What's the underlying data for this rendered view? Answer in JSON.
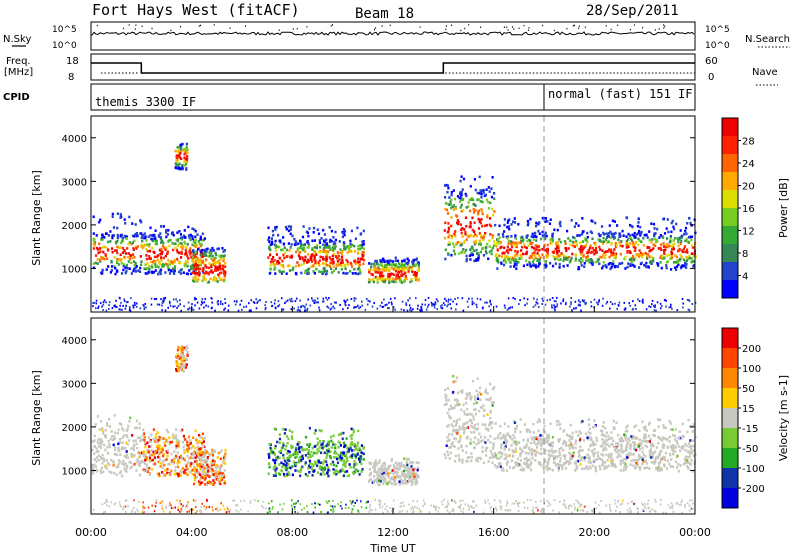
{
  "header": {
    "title": "Fort Hays West (fitACF)",
    "beam": "Beam 18",
    "date": "28/Sep/2011"
  },
  "noise_panel": {
    "left_label": "N.Sky",
    "right_label": "N.Search",
    "ticks_left": [
      "10^5",
      "10^0"
    ],
    "ticks_right": [
      "10^5",
      "10^0"
    ]
  },
  "freq_panel": {
    "left_label_1": "Freq.",
    "left_label_2": "[MHz]",
    "right_label": "Nave",
    "ticks_left": [
      "18",
      "8"
    ],
    "ticks_right": [
      "60",
      "0"
    ]
  },
  "cpid_panel": {
    "label": "CPID",
    "mode_1": "themis 3300 IF",
    "mode_2": "normal (fast) 151 IF"
  },
  "colors": {
    "power_scale": [
      "#0000ff",
      "#2244cc",
      "#338855",
      "#33aa33",
      "#77cc22",
      "#dddd00",
      "#ffaa00",
      "#ff6600",
      "#ff2200",
      "#ee0000"
    ],
    "velocity_scale": [
      "#0000dd",
      "#1133aa",
      "#22aa22",
      "#77cc33",
      "#c8c8c0",
      "#ffcc00",
      "#ff8800",
      "#ff4400",
      "#ee0000"
    ],
    "grey_scatter": "#c8c8c0"
  },
  "chart_data": [
    {
      "type": "heatmap",
      "name": "power",
      "ylabel": "Slant Range [km]",
      "yticks": [
        "1000",
        "2000",
        "3000",
        "4000"
      ],
      "ylim": [
        0,
        4500
      ],
      "colorbar_label": "Power [dB]",
      "colorbar_ticks": [
        "28",
        "24",
        "20",
        "16",
        "12",
        "8",
        "4"
      ],
      "colorbar_range": [
        0,
        30
      ]
    },
    {
      "type": "heatmap",
      "name": "velocity",
      "ylabel": "Slant Range [km]",
      "yticks": [
        "1000",
        "2000",
        "3000",
        "4000"
      ],
      "ylim": [
        0,
        4500
      ],
      "colorbar_label": "Velocity [m s-1]",
      "colorbar_ticks": [
        "200",
        "100",
        "50",
        "15",
        "-15",
        "-50",
        "-100",
        "-200"
      ],
      "colorbar_range": [
        -250,
        250
      ]
    }
  ],
  "time_axis": {
    "label": "Time UT",
    "ticks": [
      "00:00",
      "04:00",
      "08:00",
      "12:00",
      "16:00",
      "20:00",
      "00:00"
    ],
    "range_hours": [
      0,
      24
    ],
    "cpid_change_hour": 18.0,
    "freq_change_hours": [
      2.0,
      14.0
    ]
  }
}
